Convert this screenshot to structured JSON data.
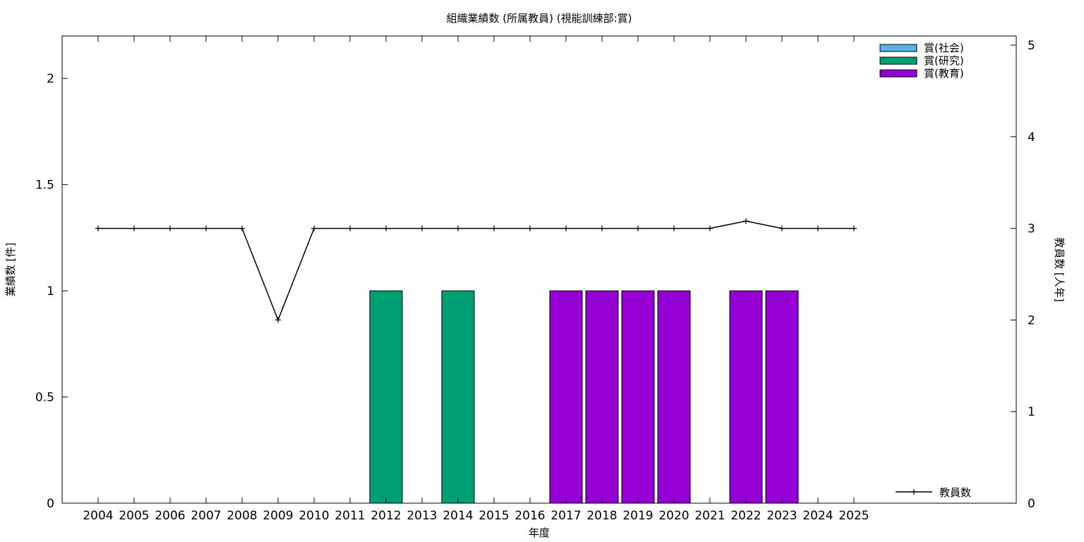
{
  "chart_data": {
    "type": "bar",
    "title": "組織業績数 (所属教員) (視能訓練部:賞)",
    "xlabel": "年度",
    "ylabel": "業績数 [件]",
    "y2label": "教員数 [人年]",
    "categories": [
      "2004",
      "2005",
      "2006",
      "2007",
      "2008",
      "2009",
      "2010",
      "2011",
      "2012",
      "2013",
      "2014",
      "2015",
      "2016",
      "2017",
      "2018",
      "2019",
      "2020",
      "2021",
      "2022",
      "2023",
      "2024",
      "2025"
    ],
    "ylim": [
      0,
      2.2
    ],
    "yticks": [
      "0",
      "0.5",
      "1",
      "1.5",
      "2"
    ],
    "y2lim": [
      0,
      5.1
    ],
    "y2ticks": [
      "0",
      "1",
      "2",
      "3",
      "4",
      "5"
    ],
    "legend_position": "top-right",
    "series": [
      {
        "name": "賞(社会)",
        "color": "#56b4e9",
        "values": [
          0,
          0,
          0,
          0,
          0,
          0,
          0,
          0,
          0,
          0,
          0,
          0,
          0,
          0,
          0,
          0,
          0,
          0,
          0,
          0,
          0,
          0
        ]
      },
      {
        "name": "賞(研究)",
        "color": "#009e73",
        "values": [
          0,
          0,
          0,
          0,
          0,
          0,
          0,
          0,
          1,
          0,
          1,
          0,
          0,
          0,
          0,
          0,
          0,
          0,
          0,
          0,
          0,
          0
        ]
      },
      {
        "name": "賞(教育)",
        "color": "#9400d3",
        "values": [
          0,
          0,
          0,
          0,
          0,
          0,
          0,
          0,
          0,
          0,
          0,
          0,
          0,
          1,
          1,
          1,
          1,
          0,
          1,
          1,
          0,
          0
        ]
      }
    ],
    "line_series": {
      "name": "教員数",
      "axis": "y2",
      "color": "#000000",
      "values": [
        3,
        3,
        3,
        3,
        3,
        2,
        3,
        3,
        3,
        3,
        3,
        3,
        3,
        3,
        3,
        3,
        3,
        3,
        3.08,
        3,
        3,
        3
      ]
    }
  }
}
